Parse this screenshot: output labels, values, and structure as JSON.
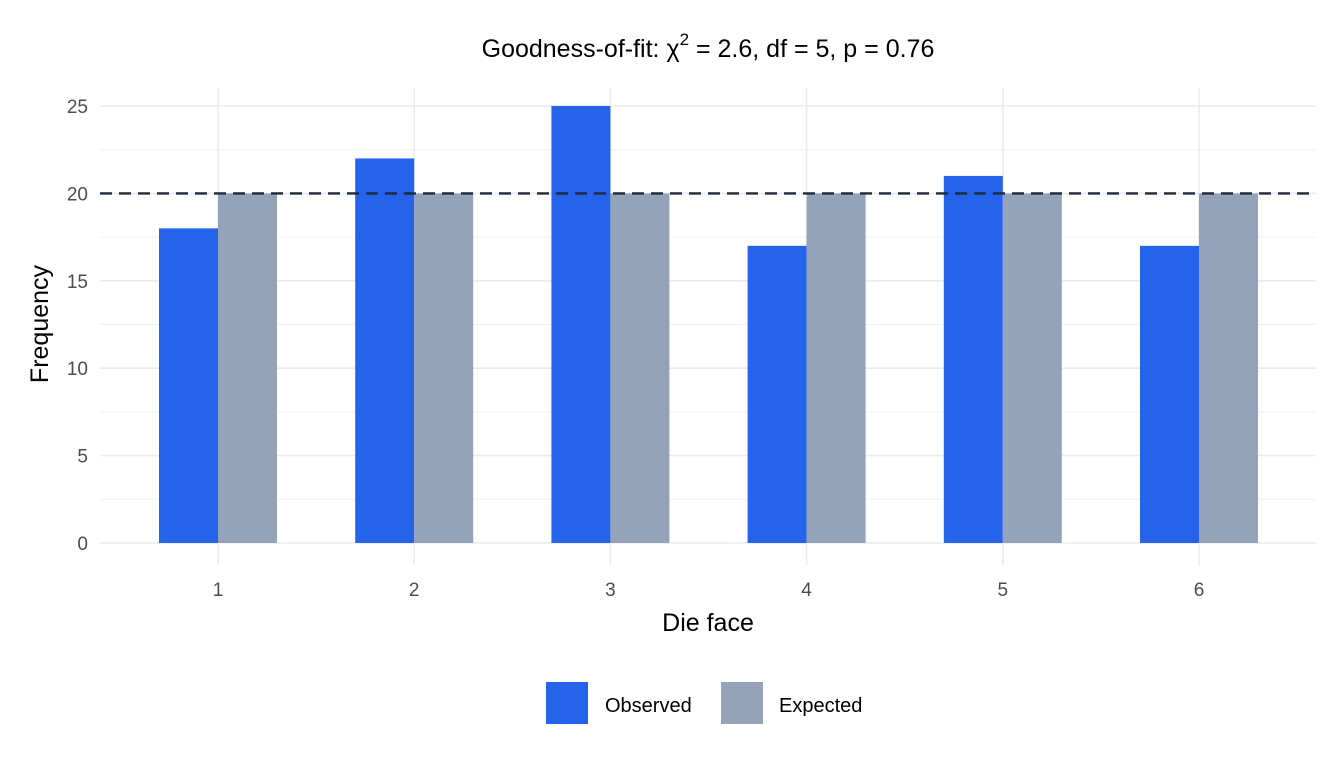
{
  "chart_data": {
    "type": "bar",
    "title": {
      "prefix": "Goodness-of-fit: ",
      "symbol": "χ",
      "superscript": "2",
      "suffix": " = 2.6, df = 5, p = 0.76"
    },
    "xlabel": "Die face",
    "ylabel": "Frequency",
    "categories": [
      "1",
      "2",
      "3",
      "4",
      "5",
      "6"
    ],
    "series": [
      {
        "name": "Observed",
        "values": [
          18,
          22,
          25,
          17,
          21,
          17
        ],
        "color": "#2563eb"
      },
      {
        "name": "Expected",
        "values": [
          20,
          20,
          20,
          20,
          20,
          20
        ],
        "color": "#94a3b8"
      }
    ],
    "ylim": [
      0,
      25
    ],
    "yticks": [
      0,
      5,
      10,
      15,
      20,
      25
    ],
    "reference_line": {
      "value": 20,
      "style": "dashed",
      "color": "#1e293b"
    },
    "grid": true,
    "legend_position": "bottom"
  }
}
